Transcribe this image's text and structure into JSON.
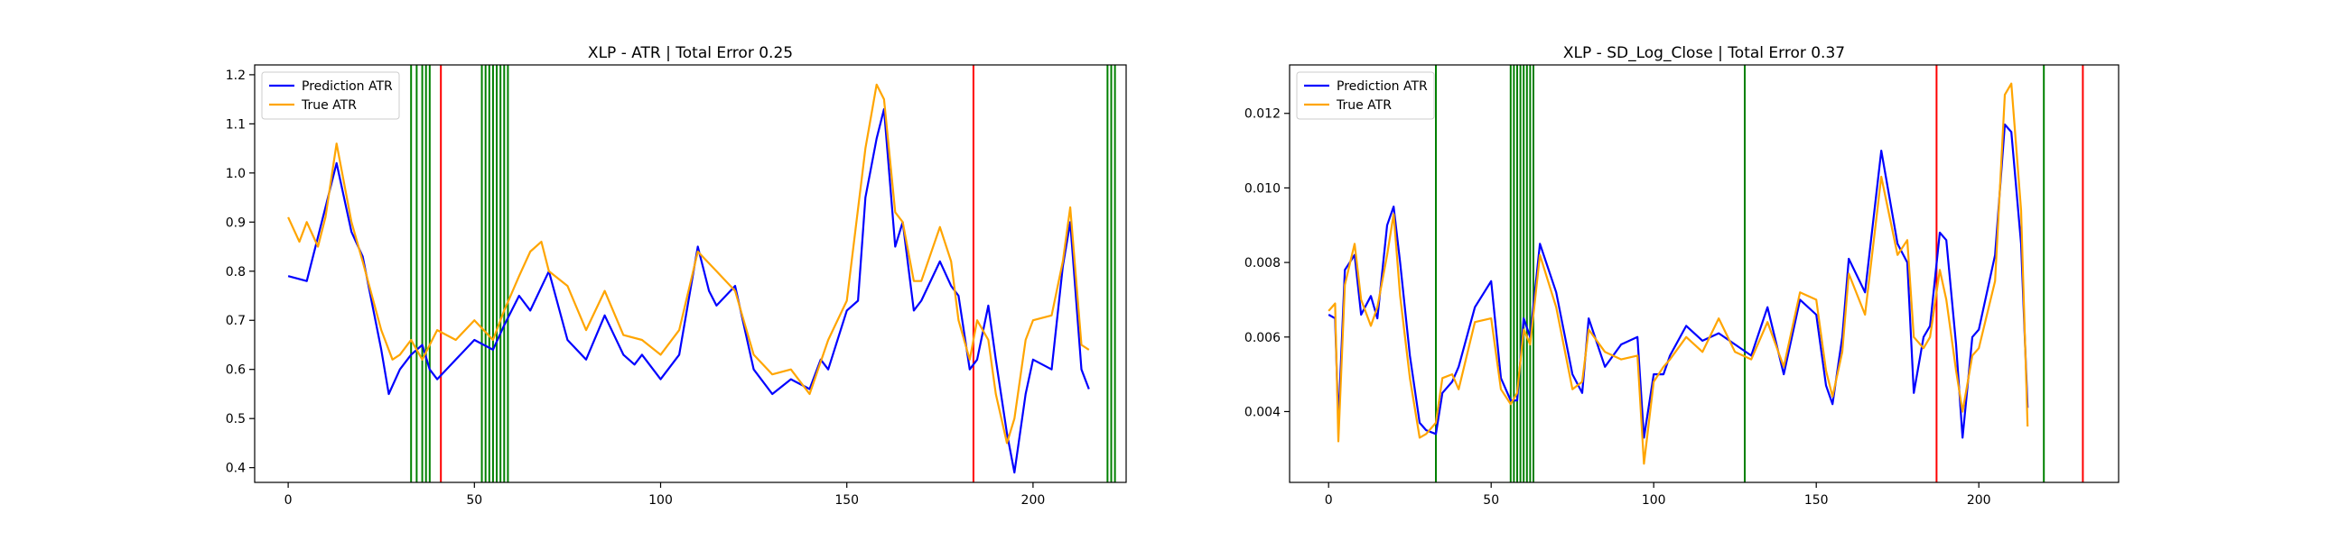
{
  "figure": {
    "background": "#ffffff"
  },
  "chart_data": [
    {
      "type": "line",
      "title": "XLP - ATR | Total Error 0.25",
      "xlabel": "",
      "ylabel": "",
      "xlim": [
        -9,
        225
      ],
      "ylim": [
        0.37,
        1.22
      ],
      "xticks": [
        0,
        50,
        100,
        150,
        200
      ],
      "yticks": [
        0.4,
        0.5,
        0.6,
        0.7,
        0.8,
        0.9,
        1.0,
        1.1,
        1.2
      ],
      "grid": false,
      "legend_position": "upper-left",
      "series": [
        {
          "name": "Prediction ATR",
          "color": "#0000ff",
          "x": [
            0,
            5,
            10,
            13,
            17,
            20,
            25,
            27,
            30,
            33,
            36,
            38,
            40,
            45,
            50,
            55,
            58,
            62,
            65,
            70,
            75,
            80,
            85,
            90,
            93,
            95,
            100,
            105,
            110,
            113,
            115,
            120,
            125,
            130,
            135,
            140,
            143,
            145,
            150,
            153,
            155,
            158,
            160,
            163,
            165,
            168,
            170,
            175,
            178,
            180,
            183,
            185,
            188,
            190,
            193,
            195,
            198,
            200,
            205,
            208,
            210,
            213,
            215
          ],
          "y": [
            0.79,
            0.78,
            0.93,
            1.02,
            0.88,
            0.83,
            0.64,
            0.55,
            0.6,
            0.63,
            0.65,
            0.6,
            0.58,
            0.62,
            0.66,
            0.64,
            0.69,
            0.75,
            0.72,
            0.8,
            0.66,
            0.62,
            0.71,
            0.63,
            0.61,
            0.63,
            0.58,
            0.63,
            0.85,
            0.76,
            0.73,
            0.77,
            0.6,
            0.55,
            0.58,
            0.56,
            0.62,
            0.6,
            0.72,
            0.74,
            0.95,
            1.07,
            1.13,
            0.85,
            0.9,
            0.72,
            0.74,
            0.82,
            0.77,
            0.75,
            0.6,
            0.62,
            0.73,
            0.62,
            0.47,
            0.39,
            0.55,
            0.62,
            0.6,
            0.81,
            0.9,
            0.6,
            0.56
          ]
        },
        {
          "name": "True ATR",
          "color": "#ffa500",
          "x": [
            0,
            3,
            5,
            8,
            10,
            13,
            17,
            20,
            25,
            28,
            30,
            33,
            36,
            40,
            45,
            50,
            55,
            58,
            62,
            65,
            68,
            70,
            75,
            80,
            85,
            90,
            95,
            100,
            105,
            110,
            115,
            120,
            125,
            130,
            135,
            140,
            145,
            150,
            155,
            158,
            160,
            163,
            165,
            168,
            170,
            175,
            178,
            180,
            183,
            185,
            188,
            190,
            193,
            195,
            198,
            200,
            205,
            208,
            210,
            213,
            215
          ],
          "y": [
            0.91,
            0.86,
            0.9,
            0.85,
            0.91,
            1.06,
            0.9,
            0.82,
            0.68,
            0.62,
            0.63,
            0.66,
            0.62,
            0.68,
            0.66,
            0.7,
            0.66,
            0.72,
            0.79,
            0.84,
            0.86,
            0.8,
            0.77,
            0.68,
            0.76,
            0.67,
            0.66,
            0.63,
            0.68,
            0.84,
            0.8,
            0.76,
            0.63,
            0.59,
            0.6,
            0.55,
            0.66,
            0.74,
            1.05,
            1.18,
            1.15,
            0.92,
            0.9,
            0.78,
            0.78,
            0.89,
            0.82,
            0.7,
            0.62,
            0.7,
            0.66,
            0.55,
            0.45,
            0.5,
            0.66,
            0.7,
            0.71,
            0.82,
            0.93,
            0.65,
            0.64
          ]
        }
      ],
      "vlines": {
        "green": [
          33,
          34.5,
          36,
          37,
          38,
          52,
          53,
          54,
          55,
          56,
          57,
          58,
          59,
          220,
          221,
          222
        ],
        "red": [
          41,
          184
        ]
      }
    },
    {
      "type": "line",
      "title": "XLP - SD_Log_Close | Total Error 0.37",
      "xlabel": "",
      "ylabel": "",
      "xlim": [
        -12,
        243
      ],
      "ylim": [
        0.0021,
        0.0133
      ],
      "xticks": [
        0,
        50,
        100,
        150,
        200
      ],
      "yticks": [
        0.004,
        0.006,
        0.008,
        0.01,
        0.012
      ],
      "grid": false,
      "legend_position": "upper-left",
      "series": [
        {
          "name": "Prediction ATR",
          "color": "#0000ff",
          "x": [
            0,
            2,
            3,
            5,
            8,
            10,
            13,
            15,
            18,
            20,
            22,
            25,
            28,
            30,
            33,
            35,
            38,
            40,
            45,
            50,
            53,
            56,
            58,
            60,
            62,
            65,
            70,
            75,
            78,
            80,
            85,
            90,
            95,
            97,
            100,
            103,
            105,
            110,
            115,
            120,
            125,
            130,
            135,
            140,
            145,
            150,
            153,
            155,
            158,
            160,
            165,
            170,
            175,
            178,
            180,
            183,
            185,
            188,
            190,
            193,
            195,
            198,
            200,
            205,
            208,
            210,
            213,
            215
          ],
          "y": [
            0.0066,
            0.0065,
            0.0037,
            0.0078,
            0.0082,
            0.0066,
            0.0071,
            0.0065,
            0.009,
            0.0095,
            0.008,
            0.0055,
            0.0037,
            0.0035,
            0.0034,
            0.0045,
            0.0048,
            0.0052,
            0.0068,
            0.0075,
            0.0049,
            0.0043,
            0.0043,
            0.0065,
            0.006,
            0.0085,
            0.0072,
            0.005,
            0.0045,
            0.0065,
            0.0052,
            0.0058,
            0.006,
            0.0033,
            0.005,
            0.005,
            0.0055,
            0.0063,
            0.0059,
            0.0061,
            0.0058,
            0.0055,
            0.0068,
            0.005,
            0.007,
            0.0066,
            0.0047,
            0.0042,
            0.006,
            0.0081,
            0.0072,
            0.011,
            0.0085,
            0.008,
            0.0045,
            0.006,
            0.0063,
            0.0088,
            0.0086,
            0.0058,
            0.0033,
            0.006,
            0.0062,
            0.0082,
            0.0117,
            0.0115,
            0.0085,
            0.0041
          ]
        },
        {
          "name": "True ATR",
          "color": "#ffa500",
          "x": [
            0,
            2,
            3,
            5,
            8,
            10,
            13,
            15,
            18,
            20,
            22,
            25,
            28,
            30,
            33,
            35,
            38,
            40,
            45,
            50,
            53,
            56,
            58,
            60,
            62,
            65,
            70,
            75,
            78,
            80,
            85,
            90,
            95,
            97,
            100,
            103,
            105,
            110,
            115,
            120,
            125,
            130,
            135,
            140,
            145,
            150,
            153,
            155,
            158,
            160,
            165,
            170,
            175,
            178,
            180,
            183,
            185,
            188,
            190,
            193,
            195,
            198,
            200,
            205,
            208,
            210,
            213,
            215
          ],
          "y": [
            0.0067,
            0.0069,
            0.0032,
            0.0074,
            0.0085,
            0.007,
            0.0063,
            0.0068,
            0.0082,
            0.0093,
            0.0071,
            0.0049,
            0.0033,
            0.0034,
            0.0037,
            0.0049,
            0.005,
            0.0046,
            0.0064,
            0.0065,
            0.0046,
            0.0042,
            0.0045,
            0.0062,
            0.0058,
            0.0082,
            0.0068,
            0.0046,
            0.0048,
            0.0062,
            0.0056,
            0.0054,
            0.0055,
            0.0026,
            0.0048,
            0.0052,
            0.0054,
            0.006,
            0.0056,
            0.0065,
            0.0056,
            0.0054,
            0.0064,
            0.0052,
            0.0072,
            0.007,
            0.0051,
            0.0044,
            0.0056,
            0.0077,
            0.0066,
            0.0103,
            0.0082,
            0.0086,
            0.006,
            0.0057,
            0.006,
            0.0078,
            0.007,
            0.0051,
            0.004,
            0.0055,
            0.0057,
            0.0075,
            0.0125,
            0.0128,
            0.0094,
            0.0036
          ]
        }
      ],
      "vlines": {
        "green": [
          33,
          56,
          57,
          58,
          59,
          60,
          61,
          62,
          63,
          128,
          220
        ],
        "red": [
          187,
          232
        ]
      }
    }
  ]
}
